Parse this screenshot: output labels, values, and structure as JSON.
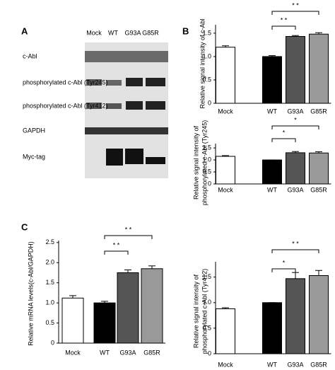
{
  "panel_labels": [
    "A",
    "B",
    "C"
  ],
  "blot": {
    "lanes": [
      "Mock",
      "WT",
      "G93A",
      "G85R"
    ],
    "rows": [
      "c-Abl",
      "phosphorylated c-Abl (Tyr245)",
      "phosphorylated c-Abl (Tyr412)",
      "GAPDH",
      "Myc-tag"
    ]
  },
  "chart_data": [
    {
      "type": "bar",
      "categories": [
        "Mock",
        "WT",
        "G93A",
        "G85R"
      ],
      "colors": [
        "#ffffff",
        "#000000",
        "#555555",
        "#999999"
      ],
      "values": [
        1.2,
        1.0,
        1.43,
        1.48
      ],
      "errors": [
        0.03,
        0.02,
        0.02,
        0.03
      ],
      "y_label": [
        "Relative signal intensity of c-Abl"
      ],
      "ylim": [
        0,
        1.68
      ],
      "yticks": [
        0,
        0.5,
        {
          "value": 1,
          "label": "1.0"
        },
        1.5
      ],
      "significance": [
        {
          "from": 1,
          "to": 2,
          "label": "* *"
        },
        {
          "from": 1,
          "to": 3,
          "label": "* *"
        }
      ]
    },
    {
      "type": "bar",
      "categories": [
        "Mock",
        "WT",
        "G93A",
        "G85R"
      ],
      "colors": [
        "#ffffff",
        "#000000",
        "#555555",
        "#999999"
      ],
      "values": [
        1.15,
        1.0,
        1.3,
        1.29
      ],
      "errors": [
        0.03,
        0.0,
        0.05,
        0.05
      ],
      "y_label": [
        "Relative signal intensity of",
        "phosphorylated c-Abl (Tyr245)"
      ],
      "ylim": [
        0,
        1.68
      ],
      "yticks": [
        0,
        0.5,
        {
          "value": 1,
          "label": "1.0"
        },
        1.5
      ],
      "significance": [
        {
          "from": 1,
          "to": 2,
          "label": "*"
        },
        {
          "from": 1,
          "to": 3,
          "label": "*"
        }
      ]
    },
    {
      "type": "bar",
      "categories": [
        "Mock",
        "WT",
        "G93A",
        "G85R"
      ],
      "colors": [
        "#ffffff",
        "#000000",
        "#555555",
        "#999999"
      ],
      "values": [
        0.88,
        1.0,
        1.47,
        1.53
      ],
      "errors": [
        0.02,
        0.0,
        0.12,
        0.1
      ],
      "y_label": [
        "Relative signal intensity of",
        "phosphorylated c-Abl (Tyr412)"
      ],
      "ylim": [
        0,
        1.8
      ],
      "yticks": [
        0,
        0.5,
        {
          "value": 1,
          "label": "1.0"
        },
        1.5
      ],
      "significance": [
        {
          "from": 1,
          "to": 2,
          "label": "*"
        },
        {
          "from": 1,
          "to": 3,
          "label": "* *"
        }
      ]
    },
    {
      "type": "bar",
      "categories": [
        "Mock",
        "WT",
        "G93A",
        "G85R"
      ],
      "colors": [
        "#ffffff",
        "#000000",
        "#555555",
        "#999999"
      ],
      "values": [
        1.12,
        1.0,
        1.75,
        1.85
      ],
      "errors": [
        0.06,
        0.04,
        0.07,
        0.07
      ],
      "y_label": [
        "Relative mRNA levels(c-Abl/GAPDH)"
      ],
      "ylim": [
        0,
        2.55
      ],
      "yticks": [
        0,
        0.5,
        {
          "value": 1,
          "label": "1.0"
        },
        {
          "value": 1.5,
          "label": "1.5"
        },
        {
          "value": 2,
          "label": "2.0"
        },
        2.5
      ],
      "significance": [
        {
          "from": 1,
          "to": 2,
          "label": "* *"
        },
        {
          "from": 1,
          "to": 3,
          "label": "* *"
        }
      ]
    }
  ]
}
